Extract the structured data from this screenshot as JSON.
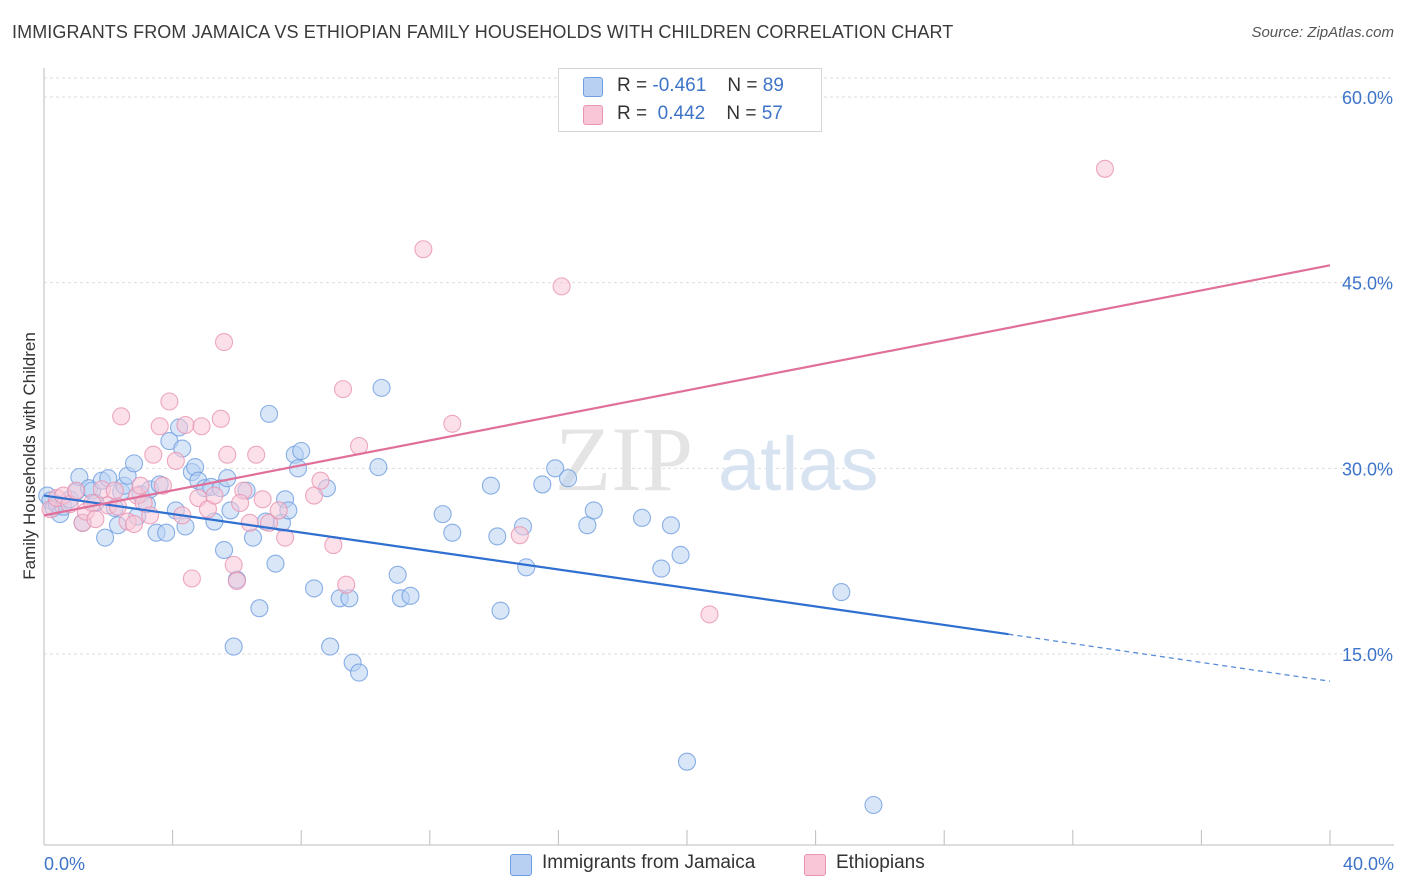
{
  "header": {
    "title": "IMMIGRANTS FROM JAMAICA VS ETHIOPIAN FAMILY HOUSEHOLDS WITH CHILDREN CORRELATION CHART",
    "source": "Source: ZipAtlas.com"
  },
  "watermark": {
    "part1": "ZIP",
    "part2": "atlas"
  },
  "legend": {
    "items": [
      {
        "r_label": "R =",
        "r_value": "-0.461",
        "n_label": "N =",
        "n_value": "89",
        "color": "#b8d1f3",
        "stroke": "#6f9ee0"
      },
      {
        "r_label": "R =",
        "r_value": "0.442",
        "n_label": "N =",
        "n_value": "57",
        "color": "#f8c6d7",
        "stroke": "#e994b2"
      }
    ]
  },
  "bottom_legend": [
    {
      "label": "Immigrants from Jamaica",
      "color": "#b8d1f3",
      "stroke": "#6f9ee0"
    },
    {
      "label": "Ethiopians",
      "color": "#f8c6d7",
      "stroke": "#e994b2"
    }
  ],
  "chart_data": {
    "type": "scatter",
    "title": "IMMIGRANTS FROM JAMAICA VS ETHIOPIAN FAMILY HOUSEHOLDS WITH CHILDREN CORRELATION CHART",
    "xlabel": "",
    "ylabel": "Family Households with Children",
    "xlim": [
      0,
      40
    ],
    "ylim": [
      0,
      60
    ],
    "x_tick_labels": [
      "0.0%",
      "40.0%"
    ],
    "y_tick_labels": [
      "15.0%",
      "30.0%",
      "45.0%",
      "60.0%"
    ],
    "y_tick_values": [
      15,
      30,
      45,
      60
    ],
    "grid": true,
    "legend_position": "top-center",
    "series": [
      {
        "name": "Immigrants from Jamaica",
        "color": "#6f9ee0",
        "fill": "#b8d1f3",
        "line_color": "#2e6fd0",
        "trend": {
          "x": [
            0,
            30
          ],
          "y": [
            27.8,
            16.6
          ],
          "dashed_to": [
            40,
            12.8
          ]
        },
        "points": [
          [
            0.1,
            27.8
          ],
          [
            0.2,
            27.4
          ],
          [
            0.3,
            26.8
          ],
          [
            0.4,
            27.1
          ],
          [
            0.5,
            26.3
          ],
          [
            0.6,
            26.9
          ],
          [
            0.8,
            27.5
          ],
          [
            1.0,
            28.1
          ],
          [
            1.1,
            29.3
          ],
          [
            1.2,
            25.6
          ],
          [
            1.4,
            28.4
          ],
          [
            1.5,
            28.2
          ],
          [
            1.6,
            27.2
          ],
          [
            1.8,
            29.0
          ],
          [
            1.9,
            24.4
          ],
          [
            2.0,
            29.2
          ],
          [
            2.2,
            26.8
          ],
          [
            2.3,
            25.4
          ],
          [
            2.4,
            28.1
          ],
          [
            2.5,
            28.6
          ],
          [
            2.6,
            29.4
          ],
          [
            2.8,
            30.4
          ],
          [
            2.9,
            26.1
          ],
          [
            3.0,
            27.9
          ],
          [
            3.2,
            27.1
          ],
          [
            3.3,
            28.3
          ],
          [
            3.5,
            24.8
          ],
          [
            3.6,
            28.7
          ],
          [
            3.8,
            24.8
          ],
          [
            3.9,
            32.2
          ],
          [
            4.1,
            26.6
          ],
          [
            4.2,
            33.3
          ],
          [
            4.3,
            31.6
          ],
          [
            4.4,
            25.3
          ],
          [
            4.6,
            29.7
          ],
          [
            4.7,
            30.1
          ],
          [
            4.8,
            29.0
          ],
          [
            5.0,
            28.4
          ],
          [
            5.2,
            28.5
          ],
          [
            5.3,
            25.7
          ],
          [
            5.5,
            28.4
          ],
          [
            5.6,
            23.4
          ],
          [
            5.7,
            29.2
          ],
          [
            5.8,
            26.6
          ],
          [
            5.9,
            15.6
          ],
          [
            6.0,
            21.0
          ],
          [
            6.3,
            28.2
          ],
          [
            6.5,
            24.4
          ],
          [
            6.7,
            18.7
          ],
          [
            6.9,
            25.7
          ],
          [
            7.0,
            34.4
          ],
          [
            7.2,
            22.3
          ],
          [
            7.4,
            25.6
          ],
          [
            7.5,
            27.5
          ],
          [
            7.6,
            26.6
          ],
          [
            7.8,
            31.1
          ],
          [
            7.9,
            30.0
          ],
          [
            8.0,
            31.4
          ],
          [
            8.4,
            20.3
          ],
          [
            8.8,
            28.4
          ],
          [
            8.9,
            15.6
          ],
          [
            9.2,
            19.5
          ],
          [
            9.5,
            19.5
          ],
          [
            9.6,
            14.3
          ],
          [
            9.8,
            13.5
          ],
          [
            10.4,
            30.1
          ],
          [
            10.5,
            36.5
          ],
          [
            11.0,
            21.4
          ],
          [
            11.1,
            19.5
          ],
          [
            11.4,
            19.7
          ],
          [
            12.4,
            26.3
          ],
          [
            12.7,
            24.8
          ],
          [
            13.9,
            28.6
          ],
          [
            14.1,
            24.5
          ],
          [
            14.2,
            18.5
          ],
          [
            14.9,
            25.3
          ],
          [
            15.0,
            22.0
          ],
          [
            15.5,
            28.7
          ],
          [
            15.9,
            30.0
          ],
          [
            16.3,
            29.2
          ],
          [
            16.9,
            25.4
          ],
          [
            17.1,
            26.6
          ],
          [
            18.6,
            26.0
          ],
          [
            19.2,
            21.9
          ],
          [
            19.5,
            25.4
          ],
          [
            19.8,
            23.0
          ],
          [
            20.0,
            6.3
          ],
          [
            24.8,
            20.0
          ],
          [
            25.8,
            2.8
          ]
        ]
      },
      {
        "name": "Ethiopians",
        "color": "#e994b2",
        "fill": "#f8c6d7",
        "line_color": "#e0709a",
        "trend": {
          "x": [
            0,
            40
          ],
          "y": [
            26.2,
            46.4
          ]
        },
        "points": [
          [
            0.2,
            26.7
          ],
          [
            0.4,
            27.6
          ],
          [
            0.6,
            27.8
          ],
          [
            0.8,
            27.1
          ],
          [
            1.0,
            28.2
          ],
          [
            1.2,
            25.6
          ],
          [
            1.3,
            26.5
          ],
          [
            1.5,
            27.2
          ],
          [
            1.6,
            25.9
          ],
          [
            1.8,
            28.3
          ],
          [
            2.0,
            27.0
          ],
          [
            2.2,
            28.2
          ],
          [
            2.3,
            26.9
          ],
          [
            2.4,
            34.2
          ],
          [
            2.6,
            25.7
          ],
          [
            2.8,
            25.5
          ],
          [
            2.9,
            27.8
          ],
          [
            3.0,
            28.6
          ],
          [
            3.1,
            27.2
          ],
          [
            3.3,
            26.2
          ],
          [
            3.4,
            31.1
          ],
          [
            3.6,
            33.4
          ],
          [
            3.7,
            28.6
          ],
          [
            3.9,
            35.4
          ],
          [
            4.1,
            30.6
          ],
          [
            4.3,
            26.2
          ],
          [
            4.4,
            33.5
          ],
          [
            4.6,
            21.1
          ],
          [
            4.8,
            27.6
          ],
          [
            4.9,
            33.4
          ],
          [
            5.1,
            26.7
          ],
          [
            5.3,
            27.8
          ],
          [
            5.5,
            34.0
          ],
          [
            5.6,
            40.2
          ],
          [
            5.7,
            31.1
          ],
          [
            5.9,
            22.2
          ],
          [
            6.0,
            20.9
          ],
          [
            6.2,
            28.2
          ],
          [
            6.4,
            25.6
          ],
          [
            6.6,
            31.1
          ],
          [
            6.8,
            27.5
          ],
          [
            7.0,
            25.6
          ],
          [
            7.3,
            26.6
          ],
          [
            7.5,
            24.4
          ],
          [
            8.4,
            27.8
          ],
          [
            8.6,
            29.0
          ],
          [
            9.0,
            23.8
          ],
          [
            9.3,
            36.4
          ],
          [
            9.4,
            20.6
          ],
          [
            9.8,
            31.8
          ],
          [
            11.8,
            47.7
          ],
          [
            12.7,
            33.6
          ],
          [
            14.8,
            24.6
          ],
          [
            16.1,
            44.7
          ],
          [
            20.7,
            18.2
          ],
          [
            33.0,
            54.2
          ],
          [
            6.1,
            27.2
          ]
        ]
      }
    ]
  }
}
